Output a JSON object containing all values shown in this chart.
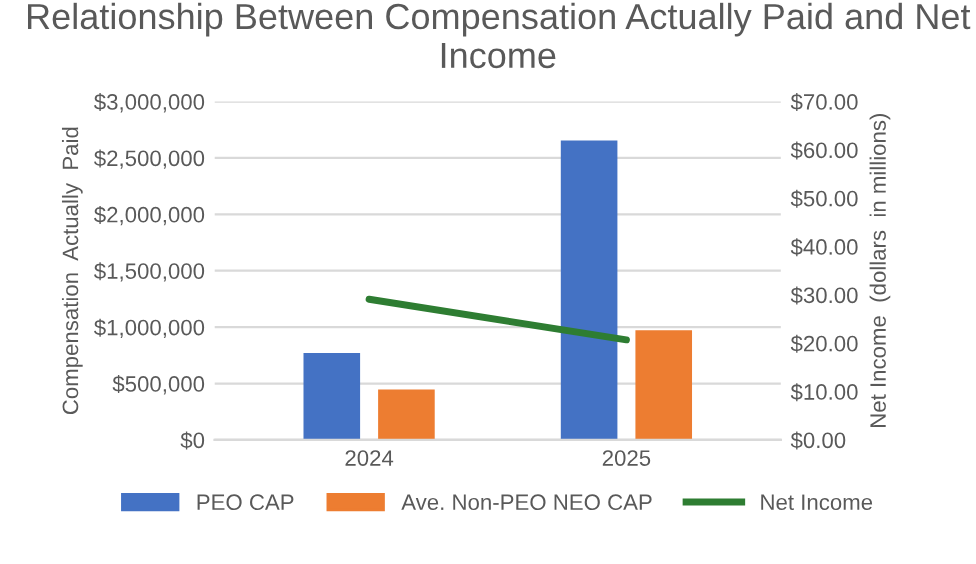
{
  "chart_data": {
    "type": "bar",
    "title": "Relationship Between Compensation Actually Paid and Net Income",
    "ylabel": "Compensation  Actually  Paid",
    "y2label": "Net Income  (dollars  in millions)",
    "categories": [
      "2024",
      "2025"
    ],
    "series": [
      {
        "name": "PEO CAP",
        "color": "#4472c4",
        "values": [
          770000,
          2655000
        ]
      },
      {
        "name": "Ave. Non-PEO NEO CAP",
        "color": "#ed7d31",
        "values": [
          446000,
          973000
        ]
      },
      {
        "name": "Net Income",
        "color": "#2e7d32",
        "type": "line",
        "axis": "y2",
        "values": [
          29.1,
          20.7
        ]
      }
    ],
    "ylim": [
      0,
      3000000
    ],
    "yticks": [
      {
        "value": 0,
        "label": "$0"
      },
      {
        "value": 500000,
        "label": "$500,000"
      },
      {
        "value": 1000000,
        "label": "$1,000,000"
      },
      {
        "value": 1500000,
        "label": "$1,500,000"
      },
      {
        "value": 2000000,
        "label": "$2,000,000"
      },
      {
        "value": 2500000,
        "label": "$2,500,000"
      },
      {
        "value": 3000000,
        "label": "$3,000,000"
      }
    ],
    "y2lim": [
      0,
      70
    ],
    "y2ticks": [
      {
        "value": 0,
        "label": "$0.00"
      },
      {
        "value": 10,
        "label": "$10.00"
      },
      {
        "value": 20,
        "label": "$20.00"
      },
      {
        "value": 30,
        "label": "$30.00"
      },
      {
        "value": 40,
        "label": "$40.00"
      },
      {
        "value": 50,
        "label": "$50.00"
      },
      {
        "value": 60,
        "label": "$60.00"
      },
      {
        "value": 70,
        "label": "$70.00"
      }
    ],
    "grid": "y",
    "legend": "bottom"
  }
}
